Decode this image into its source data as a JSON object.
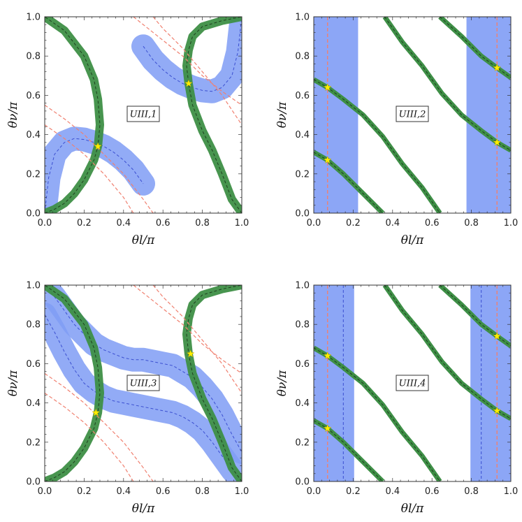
{
  "figure": {
    "xlabel": "θl/π",
    "ylabel": "θν/π",
    "colors": {
      "blue_band": "#7f9cf5",
      "blue_dashed": "#3b4fd0",
      "green_band": "#3e8f46",
      "green_dashed": "#1f3f1f",
      "red_dashed": "#f08070",
      "star": "#ffee00"
    }
  },
  "chart_data": [
    {
      "type": "line",
      "panel_label": "UIII,1",
      "xlabel": "θl/π",
      "ylabel": "θν/π",
      "xlim": [
        0,
        1
      ],
      "ylim": [
        0,
        1
      ],
      "xticks": [
        "0.0",
        "0.2",
        "0.4",
        "0.6",
        "0.8",
        "1.0"
      ],
      "yticks": [
        "0.0",
        "0.2",
        "0.4",
        "0.6",
        "0.8",
        "1.0"
      ],
      "blue_band_central": [
        {
          "x": [
            0,
            0.02,
            0.05,
            0.1,
            0.15,
            0.2,
            0.25,
            0.3,
            0.35,
            0.4,
            0.45,
            0.5
          ],
          "y": [
            0,
            0.18,
            0.3,
            0.36,
            0.38,
            0.375,
            0.36,
            0.34,
            0.31,
            0.27,
            0.22,
            0.15
          ]
        },
        {
          "x": [
            0.5,
            0.55,
            0.6,
            0.65,
            0.7,
            0.75,
            0.8,
            0.85,
            0.9,
            0.95,
            0.98,
            1.0
          ],
          "y": [
            0.85,
            0.78,
            0.73,
            0.69,
            0.66,
            0.64,
            0.625,
            0.62,
            0.64,
            0.7,
            0.82,
            1.0
          ]
        }
      ],
      "green_band_central": [
        {
          "x": [
            0,
            0.05,
            0.1,
            0.15,
            0.2,
            0.25,
            0.27,
            0.28,
            0.27,
            0.25,
            0.2,
            0.1,
            0
          ],
          "y": [
            0,
            0.02,
            0.05,
            0.1,
            0.17,
            0.27,
            0.34,
            0.45,
            0.58,
            0.68,
            0.8,
            0.93,
            1.0
          ]
        },
        {
          "x": [
            1,
            0.95,
            0.9,
            0.85,
            0.8,
            0.75,
            0.73,
            0.72,
            0.73,
            0.75,
            0.8,
            0.9,
            1.0
          ],
          "y": [
            0,
            0.07,
            0.2,
            0.32,
            0.42,
            0.55,
            0.66,
            0.75,
            0.83,
            0.9,
            0.95,
            0.98,
            1.0
          ]
        }
      ],
      "red_dashed": [
        {
          "x": [
            0,
            0.1,
            0.2,
            0.3,
            0.4,
            0.45
          ],
          "y": [
            0.45,
            0.38,
            0.3,
            0.2,
            0.08,
            0.0
          ]
        },
        {
          "x": [
            0,
            0.1,
            0.2,
            0.3,
            0.4,
            0.5,
            0.55
          ],
          "y": [
            0.55,
            0.48,
            0.4,
            0.3,
            0.2,
            0.07,
            0.0
          ]
        },
        {
          "x": [
            0.45,
            0.6,
            0.7,
            0.8,
            0.9,
            1.0
          ],
          "y": [
            1.0,
            0.88,
            0.8,
            0.7,
            0.62,
            0.55
          ]
        },
        {
          "x": [
            0.55,
            0.6,
            0.7,
            0.8,
            0.9,
            1.0
          ],
          "y": [
            1.0,
            0.94,
            0.84,
            0.72,
            0.6,
            0.45
          ]
        }
      ],
      "stars": [
        {
          "x": 0.27,
          "y": 0.34
        },
        {
          "x": 0.73,
          "y": 0.66
        }
      ]
    },
    {
      "type": "line",
      "panel_label": "UIII,2",
      "xlabel": "θl/π",
      "ylabel": "θν/π",
      "xlim": [
        0,
        1
      ],
      "ylim": [
        0,
        1
      ],
      "xticks": [
        "0.0",
        "0.2",
        "0.4",
        "0.6",
        "0.8",
        "1.0"
      ],
      "yticks": [
        "0.0",
        "0.2",
        "0.4",
        "0.6",
        "0.8",
        "1.0"
      ],
      "blue_vertical_bands": [
        [
          0,
          0.225
        ],
        [
          0.775,
          1.0
        ]
      ],
      "red_vertical_lines": [
        0.07,
        0.93
      ],
      "green_curves": [
        {
          "x": [
            0,
            0.07,
            0.15,
            0.25,
            0.35
          ],
          "y": [
            0.31,
            0.27,
            0.2,
            0.1,
            0.0
          ]
        },
        {
          "x": [
            0,
            0.07,
            0.15,
            0.25,
            0.35,
            0.45,
            0.55,
            0.64
          ],
          "y": [
            0.68,
            0.64,
            0.58,
            0.5,
            0.39,
            0.25,
            0.13,
            0.0
          ]
        },
        {
          "x": [
            0.36,
            0.45,
            0.55,
            0.65,
            0.75,
            0.85,
            0.93,
            1.0
          ],
          "y": [
            1.0,
            0.87,
            0.75,
            0.61,
            0.5,
            0.42,
            0.36,
            0.32
          ]
        },
        {
          "x": [
            0.64,
            0.75,
            0.85,
            0.93,
            1.0
          ],
          "y": [
            1.0,
            0.9,
            0.8,
            0.74,
            0.69
          ]
        }
      ],
      "stars": [
        {
          "x": 0.07,
          "y": 0.64
        },
        {
          "x": 0.07,
          "y": 0.27
        },
        {
          "x": 0.93,
          "y": 0.74
        },
        {
          "x": 0.93,
          "y": 0.36
        }
      ]
    },
    {
      "type": "line",
      "panel_label": "UIII,3",
      "xlabel": "θl/π",
      "ylabel": "θν/π",
      "xlim": [
        0,
        1
      ],
      "ylim": [
        0,
        1
      ],
      "xticks": [
        "0.0",
        "0.2",
        "0.4",
        "0.6",
        "0.8",
        "1.0"
      ],
      "yticks": [
        "0.0",
        "0.2",
        "0.4",
        "0.6",
        "0.8",
        "1.0"
      ],
      "blue_band_central": [
        {
          "x": [
            0,
            0.05,
            0.1,
            0.15,
            0.2,
            0.25,
            0.3,
            0.35,
            0.4,
            0.45,
            0.5,
            0.55,
            0.6,
            0.65,
            0.7,
            0.75,
            0.8,
            0.85,
            0.9,
            0.95,
            1.0
          ],
          "y": [
            0.85,
            0.76,
            0.66,
            0.57,
            0.5,
            0.46,
            0.43,
            0.41,
            0.4,
            0.39,
            0.38,
            0.37,
            0.36,
            0.35,
            0.33,
            0.3,
            0.26,
            0.2,
            0.13,
            0.06,
            0.0
          ]
        },
        {
          "x": [
            0,
            0.05,
            0.1,
            0.15,
            0.2,
            0.25,
            0.3,
            0.35,
            0.4,
            0.45,
            0.5,
            0.55,
            0.6,
            0.65,
            0.7,
            0.75,
            0.8,
            0.85,
            0.9,
            0.95,
            1.0
          ],
          "y": [
            1.0,
            0.94,
            0.87,
            0.8,
            0.75,
            0.7,
            0.67,
            0.65,
            0.63,
            0.62,
            0.62,
            0.61,
            0.6,
            0.59,
            0.56,
            0.53,
            0.48,
            0.42,
            0.34,
            0.24,
            0.15
          ]
        }
      ],
      "green_band_central": [
        {
          "x": [
            0,
            0.05,
            0.1,
            0.15,
            0.2,
            0.25,
            0.27,
            0.28,
            0.27,
            0.25,
            0.2,
            0.1,
            0
          ],
          "y": [
            0,
            0.02,
            0.05,
            0.1,
            0.17,
            0.27,
            0.35,
            0.45,
            0.58,
            0.68,
            0.8,
            0.93,
            1.0
          ]
        },
        {
          "x": [
            1,
            0.95,
            0.9,
            0.85,
            0.8,
            0.75,
            0.73,
            0.72,
            0.73,
            0.75,
            0.8,
            0.9,
            1.0
          ],
          "y": [
            0,
            0.07,
            0.2,
            0.32,
            0.42,
            0.55,
            0.65,
            0.75,
            0.83,
            0.9,
            0.95,
            0.98,
            1.0
          ]
        }
      ],
      "red_dashed": [
        {
          "x": [
            0,
            0.1,
            0.2,
            0.3,
            0.4,
            0.45
          ],
          "y": [
            0.45,
            0.38,
            0.3,
            0.2,
            0.08,
            0.0
          ]
        },
        {
          "x": [
            0,
            0.1,
            0.2,
            0.3,
            0.4,
            0.5,
            0.55
          ],
          "y": [
            0.55,
            0.48,
            0.4,
            0.3,
            0.2,
            0.07,
            0.0
          ]
        },
        {
          "x": [
            0.45,
            0.6,
            0.7,
            0.8,
            0.9,
            1.0
          ],
          "y": [
            1.0,
            0.88,
            0.8,
            0.7,
            0.62,
            0.55
          ]
        },
        {
          "x": [
            0.55,
            0.6,
            0.7,
            0.8,
            0.9,
            1.0
          ],
          "y": [
            1.0,
            0.94,
            0.84,
            0.72,
            0.6,
            0.45
          ]
        }
      ],
      "stars": [
        {
          "x": 0.26,
          "y": 0.35
        },
        {
          "x": 0.74,
          "y": 0.65
        }
      ]
    },
    {
      "type": "line",
      "panel_label": "UIII,4",
      "xlabel": "θl/π",
      "ylabel": "θν/π",
      "xlim": [
        0,
        1
      ],
      "ylim": [
        0,
        1
      ],
      "xticks": [
        "0.0",
        "0.2",
        "0.4",
        "0.6",
        "0.8",
        "1.0"
      ],
      "yticks": [
        "0.0",
        "0.2",
        "0.4",
        "0.6",
        "0.8",
        "1.0"
      ],
      "blue_vertical_bands": [
        [
          0,
          0.205
        ],
        [
          0.795,
          1.0
        ]
      ],
      "blue_dashed_vertical": [
        0.15,
        0.85
      ],
      "red_vertical_lines": [
        0.07,
        0.93
      ],
      "green_curves": [
        {
          "x": [
            0,
            0.07,
            0.15,
            0.25,
            0.35
          ],
          "y": [
            0.31,
            0.27,
            0.2,
            0.1,
            0.0
          ]
        },
        {
          "x": [
            0,
            0.07,
            0.15,
            0.25,
            0.35,
            0.45,
            0.55,
            0.64
          ],
          "y": [
            0.68,
            0.64,
            0.58,
            0.5,
            0.39,
            0.25,
            0.13,
            0.0
          ]
        },
        {
          "x": [
            0.36,
            0.45,
            0.55,
            0.65,
            0.75,
            0.85,
            0.93,
            1.0
          ],
          "y": [
            1.0,
            0.87,
            0.75,
            0.61,
            0.5,
            0.42,
            0.36,
            0.32
          ]
        },
        {
          "x": [
            0.64,
            0.75,
            0.85,
            0.93,
            1.0
          ],
          "y": [
            1.0,
            0.9,
            0.8,
            0.74,
            0.69
          ]
        }
      ],
      "stars": [
        {
          "x": 0.07,
          "y": 0.64
        },
        {
          "x": 0.07,
          "y": 0.27
        },
        {
          "x": 0.93,
          "y": 0.74
        },
        {
          "x": 0.93,
          "y": 0.36
        }
      ]
    }
  ]
}
